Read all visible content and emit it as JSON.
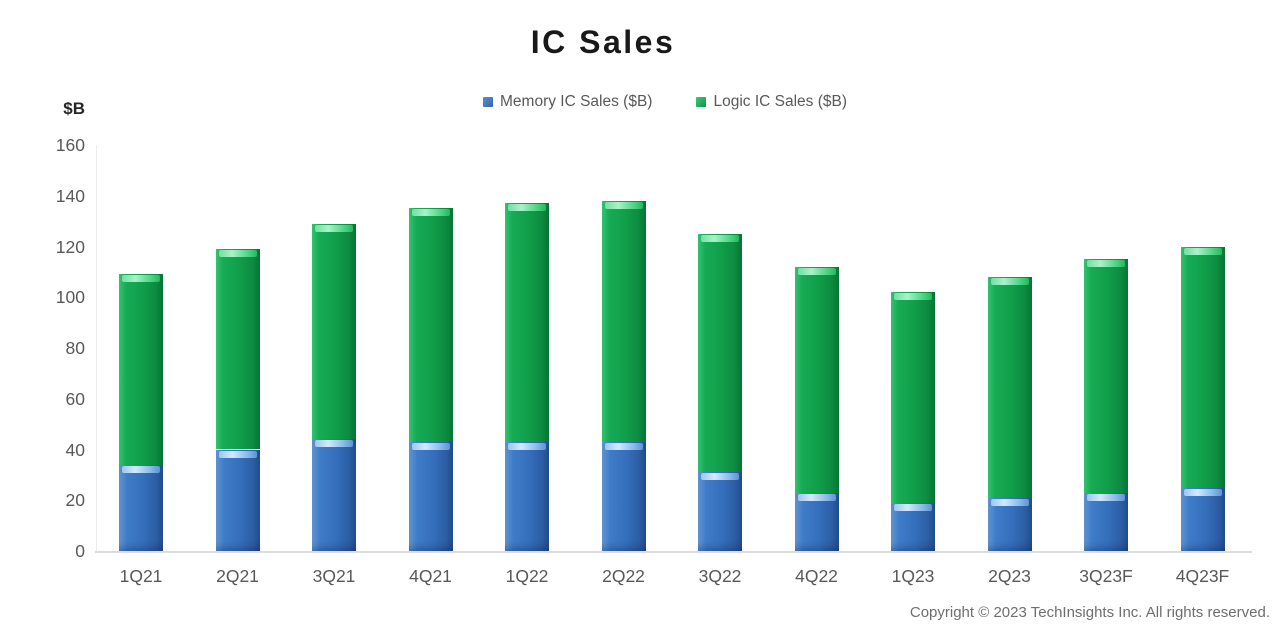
{
  "title": "IC Sales",
  "y_axis_unit_label": "$B",
  "footer": {
    "copyright": "Copyright © 2023 TechInsights Inc. All rights reserved."
  },
  "colors": {
    "memory_blue": "#3a76c2",
    "logic_green": "#12a24e",
    "axis_text": "#595959",
    "title_text": "#191919",
    "copyright_text": "#6e6e6e",
    "axis_line": "#dcdcdc"
  },
  "chart_data": {
    "type": "bar",
    "stacked": true,
    "title": "IC Sales",
    "ylabel": "$B",
    "xlabel": "",
    "categories": [
      "1Q21",
      "2Q21",
      "3Q21",
      "4Q21",
      "1Q22",
      "2Q22",
      "3Q22",
      "4Q22",
      "1Q23",
      "2Q23",
      "3Q23F",
      "4Q23F"
    ],
    "series": [
      {
        "name": "Memory IC Sales ($B)",
        "color": "#3a76c2",
        "values": [
          34,
          40,
          44,
          43,
          43,
          43,
          31,
          23,
          19,
          21,
          23,
          25
        ]
      },
      {
        "name": "Logic IC Sales ($B)",
        "color": "#12a24e",
        "values": [
          75,
          79,
          85,
          92,
          94,
          95,
          94,
          89,
          83,
          87,
          92,
          95
        ]
      }
    ],
    "totals": [
      109,
      119,
      129,
      135,
      137,
      138,
      125,
      112,
      102,
      108,
      115,
      120
    ],
    "ylim": [
      0,
      160
    ],
    "yticks": [
      0,
      20,
      40,
      60,
      80,
      100,
      120,
      140,
      160
    ],
    "grid": false,
    "legend_position": "top-center"
  }
}
